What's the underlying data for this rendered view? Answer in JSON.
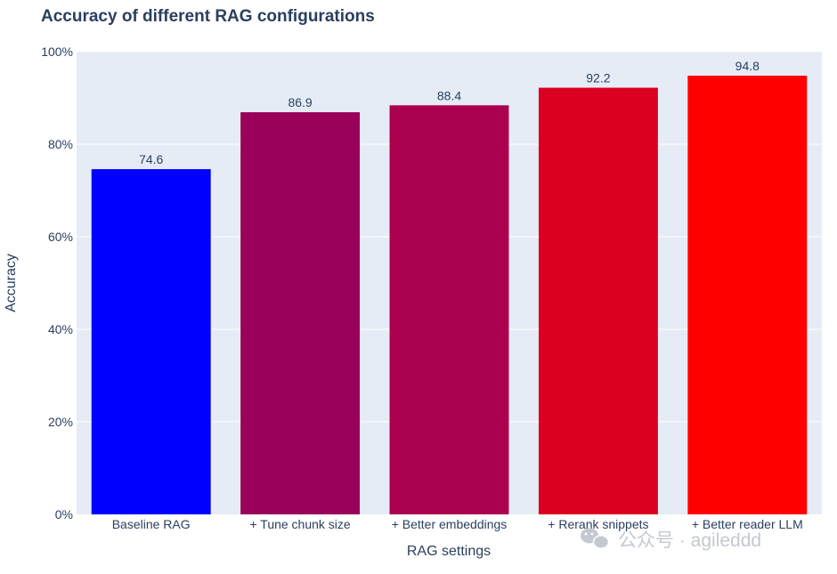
{
  "chart_data": {
    "type": "bar",
    "title": "Accuracy of different RAG configurations",
    "xlabel": "RAG settings",
    "ylabel": "Accuracy",
    "categories": [
      "Baseline RAG",
      "+ Tune chunk size",
      "+ Better embeddings",
      "+ Rerank snippets",
      "+ Better reader LLM"
    ],
    "values": [
      74.6,
      86.9,
      88.4,
      92.2,
      94.8
    ],
    "data_labels": [
      "74.6",
      "86.9",
      "88.4",
      "92.2",
      "94.8"
    ],
    "colors": [
      "#0000ff",
      "#990059",
      "#ab004f",
      "#dc0020",
      "#ff0000"
    ],
    "ylim": [
      0,
      100
    ],
    "yticks": [
      0,
      20,
      40,
      60,
      80,
      100
    ],
    "ytick_labels": [
      "0%",
      "20%",
      "40%",
      "60%",
      "80%",
      "100%"
    ],
    "grid": true,
    "plot_background": "#e5ecf6",
    "text_color": "#2a3f5f"
  },
  "watermark": {
    "text": "公众号 · agileddd",
    "icon": "wechat-icon"
  }
}
